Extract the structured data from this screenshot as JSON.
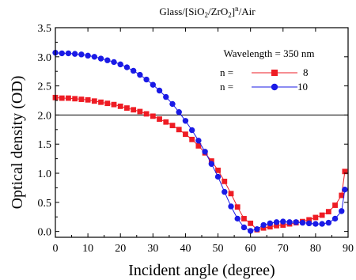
{
  "chart_data": {
    "type": "line",
    "title_parts": {
      "pre": "Glass/[SiO",
      "sub1": "2",
      "mid": "/ZrO",
      "sub2": "2",
      "close": "]",
      "sup": "n",
      "post": "/Air"
    },
    "xlabel": "Incident angle (degree)",
    "ylabel": "Optical density (OD)",
    "xlim": [
      0,
      90
    ],
    "ylim": [
      -0.1,
      3.5
    ],
    "xticks": [
      "0",
      "10",
      "20",
      "30",
      "40",
      "50",
      "60",
      "70",
      "80",
      "90"
    ],
    "yticks": [
      "0.0",
      "0.5",
      "1.0",
      "1.5",
      "2.0",
      "2.5",
      "3.0",
      "3.5"
    ],
    "reference_line_y": 2.0,
    "legend": {
      "title": "Wavelength = 350 nm",
      "placement": "top-right"
    },
    "series": [
      {
        "name": "8",
        "legend_prefix": "n =",
        "color": "#ee1c24",
        "marker": "square",
        "x": [
          0,
          2,
          4,
          6,
          8,
          10,
          12,
          14,
          16,
          18,
          20,
          22,
          24,
          26,
          28,
          30,
          32,
          34,
          36,
          38,
          40,
          42,
          44,
          46,
          48,
          50,
          52,
          54,
          56,
          58,
          60,
          62,
          64,
          66,
          68,
          70,
          72,
          74,
          76,
          78,
          80,
          82,
          84,
          86,
          88,
          89
        ],
        "y": [
          2.3,
          2.29,
          2.29,
          2.28,
          2.27,
          2.26,
          2.24,
          2.22,
          2.2,
          2.18,
          2.15,
          2.12,
          2.09,
          2.06,
          2.02,
          1.98,
          1.93,
          1.88,
          1.82,
          1.75,
          1.67,
          1.58,
          1.47,
          1.35,
          1.21,
          1.05,
          0.86,
          0.65,
          0.42,
          0.22,
          0.14,
          0.03,
          0.06,
          0.08,
          0.1,
          0.11,
          0.13,
          0.15,
          0.17,
          0.2,
          0.24,
          0.28,
          0.34,
          0.45,
          0.62,
          1.03
        ]
      },
      {
        "name": "10",
        "legend_prefix": "n =",
        "color": "#1a1ae6",
        "marker": "circle",
        "x": [
          0,
          2,
          4,
          6,
          8,
          10,
          12,
          14,
          16,
          18,
          20,
          22,
          24,
          26,
          28,
          30,
          32,
          34,
          36,
          38,
          40,
          42,
          44,
          46,
          48,
          50,
          52,
          54,
          56,
          58,
          60,
          62,
          64,
          66,
          68,
          70,
          72,
          74,
          76,
          78,
          80,
          82,
          84,
          86,
          88,
          89
        ],
        "y": [
          3.07,
          3.06,
          3.06,
          3.05,
          3.04,
          3.02,
          3.0,
          2.97,
          2.94,
          2.91,
          2.87,
          2.82,
          2.76,
          2.69,
          2.61,
          2.52,
          2.42,
          2.31,
          2.19,
          2.05,
          1.9,
          1.74,
          1.56,
          1.37,
          1.16,
          0.94,
          0.68,
          0.43,
          0.22,
          0.07,
          0.01,
          0.04,
          0.11,
          0.14,
          0.16,
          0.17,
          0.16,
          0.16,
          0.15,
          0.14,
          0.13,
          0.13,
          0.15,
          0.22,
          0.35,
          0.72
        ]
      }
    ]
  }
}
